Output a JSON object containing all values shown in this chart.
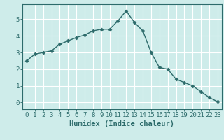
{
  "x": [
    0,
    1,
    2,
    3,
    4,
    5,
    6,
    7,
    8,
    9,
    10,
    11,
    12,
    13,
    14,
    15,
    16,
    17,
    18,
    19,
    20,
    21,
    22,
    23
  ],
  "y": [
    2.5,
    2.9,
    3.0,
    3.1,
    3.5,
    3.7,
    3.9,
    4.05,
    4.3,
    4.4,
    4.4,
    4.9,
    5.5,
    4.8,
    4.3,
    3.0,
    2.1,
    2.0,
    1.4,
    1.2,
    1.0,
    0.65,
    0.3,
    0.05
  ],
  "line_color": "#2d6b6b",
  "bg_color": "#ceecea",
  "grid_color": "#ffffff",
  "xlabel": "Humidex (Indice chaleur)",
  "ylim": [
    -0.4,
    5.9
  ],
  "xlim": [
    -0.5,
    23.5
  ],
  "yticks": [
    0,
    1,
    2,
    3,
    4,
    5
  ],
  "xticks": [
    0,
    1,
    2,
    3,
    4,
    5,
    6,
    7,
    8,
    9,
    10,
    11,
    12,
    13,
    14,
    15,
    16,
    17,
    18,
    19,
    20,
    21,
    22,
    23
  ],
  "marker": "D",
  "markersize": 2.5,
  "linewidth": 1.0,
  "xlabel_fontsize": 7.5,
  "tick_fontsize": 6.5
}
